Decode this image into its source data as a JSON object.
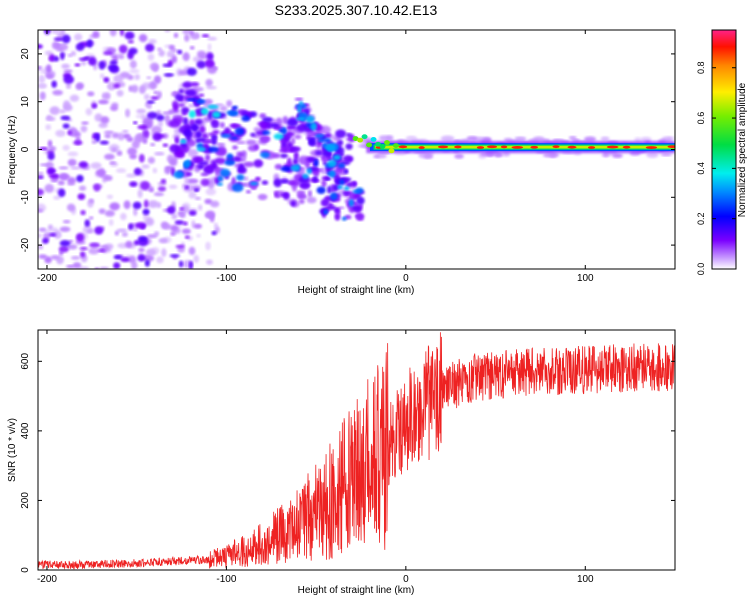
{
  "title": "S233.2025.307.10.42.E13",
  "chart_data": [
    {
      "type": "heatmap",
      "title": "S233.2025.307.10.42.E13",
      "xlabel": "Height of straight line (km)",
      "ylabel": "Frequency (Hz)",
      "xlim": [
        -205,
        150
      ],
      "ylim": [
        -25,
        25
      ],
      "xticks": [
        -200,
        -100,
        0,
        100
      ],
      "yticks": [
        -20,
        -10,
        0,
        10,
        20
      ],
      "colorbar": {
        "label": "Normalized spectral amplitude",
        "range": [
          0,
          0.95
        ],
        "ticks": [
          0.0,
          0.2,
          0.4,
          0.6,
          0.8
        ]
      },
      "ridge": {
        "description": "Narrow band near 0 Hz for heights above about -25 km; scattered energy below",
        "x_start": -25,
        "x_end": 150,
        "frequency": 0.5
      }
    },
    {
      "type": "line",
      "xlabel": "Height of straight line (km)",
      "ylabel": "SNR (10 * v/v)",
      "xlim": [
        -205,
        150
      ],
      "ylim": [
        0,
        690
      ],
      "xticks": [
        -200,
        -100,
        0,
        100
      ],
      "yticks": [
        0,
        200,
        400,
        600
      ],
      "series": [
        {
          "name": "SNR",
          "color": "#ee2222",
          "envelope_x": [
            -205,
            -180,
            -150,
            -130,
            -110,
            -100,
            -90,
            -80,
            -70,
            -60,
            -50,
            -40,
            -30,
            -20,
            -10,
            0,
            10,
            20,
            30,
            40,
            60,
            80,
            100,
            120,
            150
          ],
          "envelope_y": [
            15,
            15,
            20,
            25,
            30,
            40,
            55,
            75,
            100,
            130,
            170,
            210,
            260,
            310,
            360,
            420,
            470,
            510,
            540,
            555,
            565,
            570,
            575,
            580,
            585
          ]
        }
      ]
    }
  ]
}
